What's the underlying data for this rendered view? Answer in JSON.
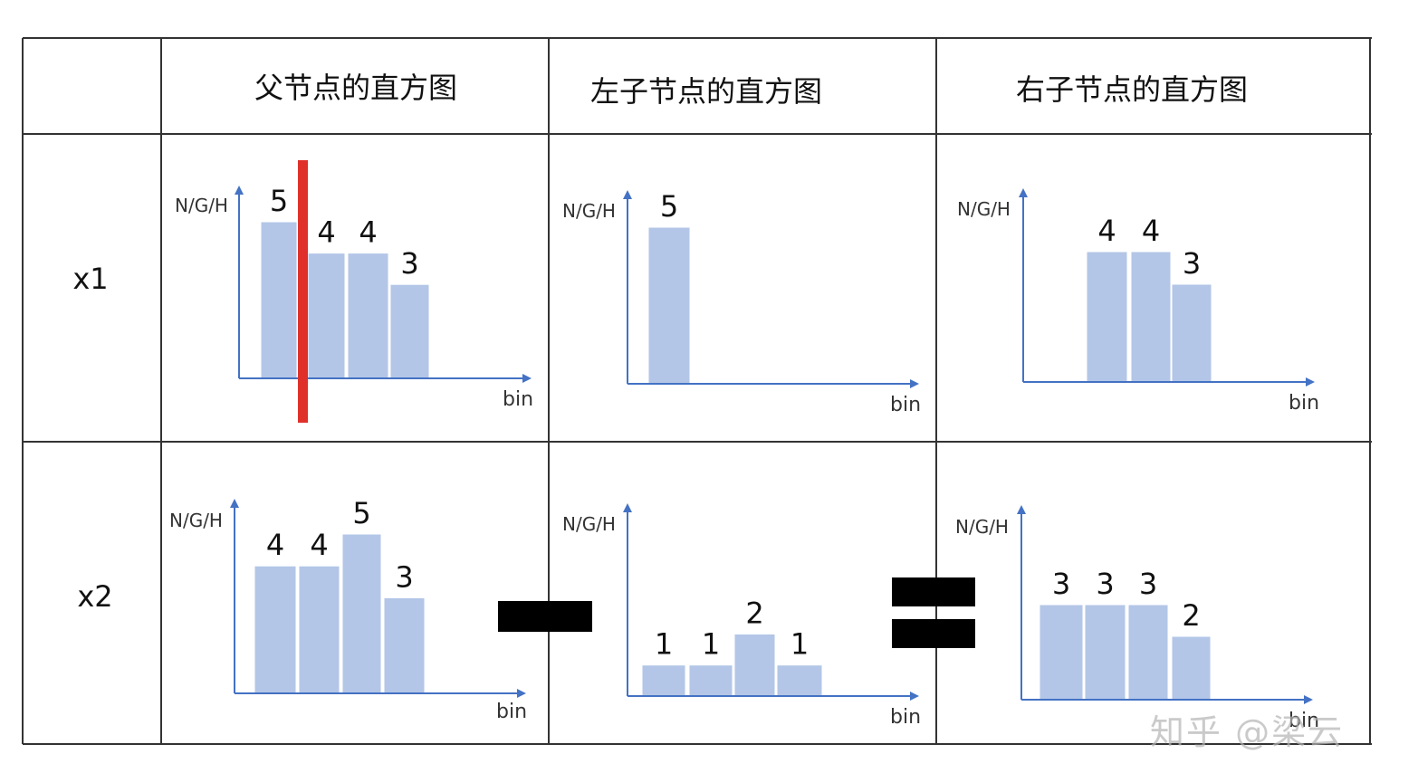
{
  "table": {
    "headers": [
      "",
      "父节点的直方图",
      "左子节点的直方图",
      "右子节点的直方图"
    ],
    "rows": [
      "x1",
      "x2"
    ]
  },
  "axis": {
    "ylabel": "N/G/H",
    "xlabel": "bin"
  },
  "colors": {
    "bar": "#b3c6e7",
    "axis": "#4472c4",
    "split": "#e0302a",
    "grid": "#333333",
    "operator": "#000000"
  },
  "operators": {
    "minus": "minus",
    "equals": "equals"
  },
  "watermark": "知乎 @梁云",
  "chart_data": [
    {
      "type": "bar",
      "id": "x1-parent",
      "values": [
        5,
        4,
        4,
        3
      ],
      "split_after_index": 0,
      "xlabel": "bin",
      "ylabel": "N/G/H"
    },
    {
      "type": "bar",
      "id": "x1-left",
      "values": [
        5
      ],
      "xlabel": "bin",
      "ylabel": "N/G/H"
    },
    {
      "type": "bar",
      "id": "x1-right",
      "values": [
        4,
        4,
        3
      ],
      "xlabel": "bin",
      "ylabel": "N/G/H"
    },
    {
      "type": "bar",
      "id": "x2-parent",
      "values": [
        4,
        4,
        5,
        3
      ],
      "xlabel": "bin",
      "ylabel": "N/G/H"
    },
    {
      "type": "bar",
      "id": "x2-left",
      "values": [
        1,
        1,
        2,
        1
      ],
      "xlabel": "bin",
      "ylabel": "N/G/H"
    },
    {
      "type": "bar",
      "id": "x2-right",
      "values": [
        3,
        3,
        3,
        2
      ],
      "xlabel": "bin",
      "ylabel": "N/G/H"
    }
  ]
}
